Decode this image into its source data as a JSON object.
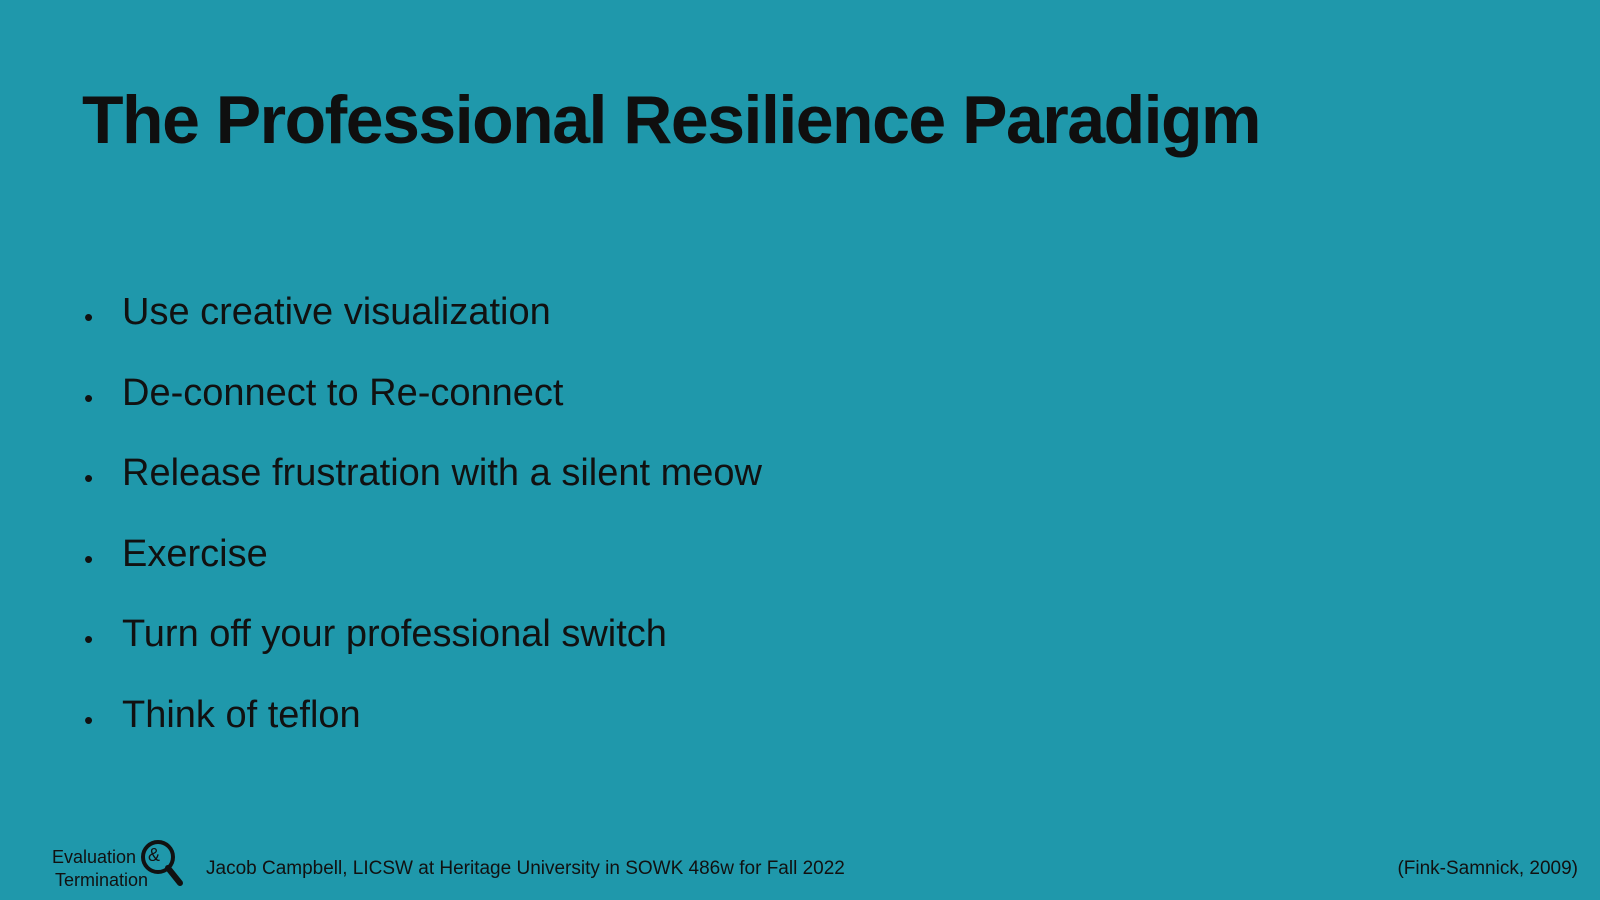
{
  "slide": {
    "title": "The Professional Resilience Paradigm",
    "bullets": [
      "Use creative visualization",
      "De-connect to Re-connect",
      "Release frustration with a silent meow",
      "Exercise",
      "Turn off your professional switch",
      "Think of teflon"
    ],
    "bullet_glyph": "•"
  },
  "footer": {
    "logo": {
      "line1": "Evaluation",
      "ampersand": "&",
      "line2": "Termination",
      "icon": "magnifier-icon"
    },
    "credit": "Jacob Campbell, LICSW at Heritage University in SOWK 486w for Fall 2022",
    "citation": "(Fink-Samnick, 2009)"
  },
  "colors": {
    "background": "#1f98ab",
    "text": "#111111"
  }
}
